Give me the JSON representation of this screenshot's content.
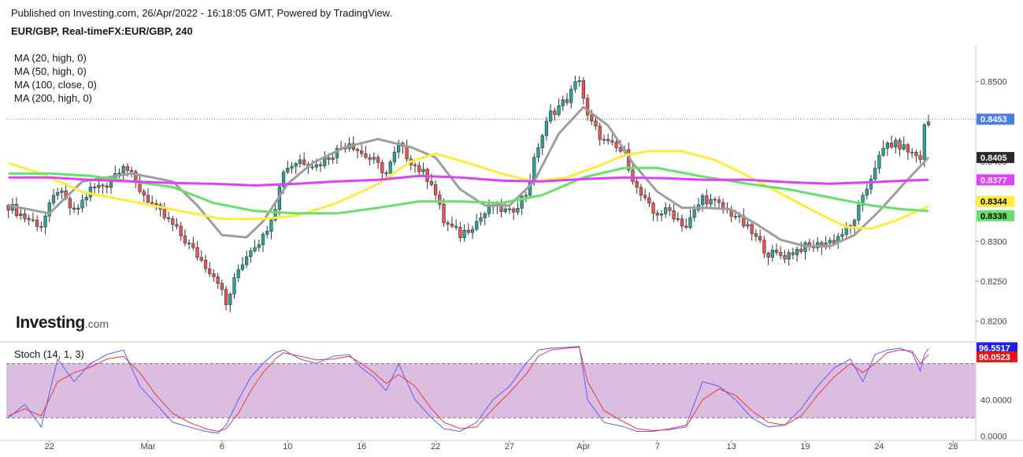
{
  "header": {
    "published": "Published on Investing.com, 26/Apr/2022 - 16:18:05 GMT, Powered by TradingView.",
    "symbol": "EUR/GBP, Real-timeFX:EUR/GBP, 240"
  },
  "brand": {
    "main": "Investing",
    "suffix": ".com"
  },
  "colors": {
    "up": "#26a69a",
    "down": "#ef5350",
    "candle_border": "#333333",
    "ma20": "#9e9e9e",
    "ma50": "#ffeb3b",
    "ma100": "#66e066",
    "ma200": "#e040fb",
    "stoch_k": "#5b5bff",
    "stoch_d": "#ef3340",
    "stoch_band": "#dbbde0",
    "last_price": "#4a7fe0"
  },
  "chart_data": {
    "type": "candlestick",
    "price_axis": {
      "range": [
        0.8175,
        0.8545
      ],
      "ticks": [
        "0.8500",
        "0.8450",
        "0.8400",
        "0.8350",
        "0.8300",
        "0.8250",
        "0.8200"
      ]
    },
    "price_labels": [
      {
        "value": 0.8453,
        "text": "0.8453",
        "series": "last"
      },
      {
        "value": 0.8405,
        "text": "0.8405",
        "series": "ma20"
      },
      {
        "value": 0.8377,
        "text": "0.8377",
        "series": "ma200"
      },
      {
        "value": 0.8344,
        "text": "0.8344",
        "series": "ma50"
      },
      {
        "value": 0.8338,
        "text": "0.8338",
        "series": "ma100"
      }
    ],
    "x_axis": {
      "labels": [
        {
          "text": "22",
          "bar": 10
        },
        {
          "text": "Mar",
          "bar": 34
        },
        {
          "text": "6",
          "bar": 52
        },
        {
          "text": "10",
          "bar": 68
        },
        {
          "text": "16",
          "bar": 86
        },
        {
          "text": "22",
          "bar": 104
        },
        {
          "text": "27",
          "bar": 122
        },
        {
          "text": "Apr",
          "bar": 140
        },
        {
          "text": "7",
          "bar": 158
        },
        {
          "text": "13",
          "bar": 176
        },
        {
          "text": "19",
          "bar": 194
        },
        {
          "text": "24",
          "bar": 212
        },
        {
          "text": "28",
          "bar": 230
        }
      ],
      "bar_count": 236
    },
    "moving_averages": [
      {
        "name": "MA (20, high, 0)",
        "color_key": "ma20",
        "points": [
          [
            0,
            0.8345
          ],
          [
            10,
            0.8335
          ],
          [
            18,
            0.8375
          ],
          [
            30,
            0.8385
          ],
          [
            40,
            0.8375
          ],
          [
            46,
            0.8345
          ],
          [
            52,
            0.8308
          ],
          [
            58,
            0.8305
          ],
          [
            62,
            0.8325
          ],
          [
            68,
            0.8372
          ],
          [
            74,
            0.8398
          ],
          [
            82,
            0.8418
          ],
          [
            90,
            0.8428
          ],
          [
            98,
            0.8418
          ],
          [
            104,
            0.8405
          ],
          [
            110,
            0.8365
          ],
          [
            116,
            0.8345
          ],
          [
            122,
            0.8345
          ],
          [
            128,
            0.8375
          ],
          [
            134,
            0.8435
          ],
          [
            140,
            0.8468
          ],
          [
            146,
            0.8445
          ],
          [
            152,
            0.8398
          ],
          [
            158,
            0.8362
          ],
          [
            164,
            0.8342
          ],
          [
            170,
            0.8342
          ],
          [
            176,
            0.834
          ],
          [
            182,
            0.8322
          ],
          [
            188,
            0.8302
          ],
          [
            194,
            0.8294
          ],
          [
            200,
            0.8294
          ],
          [
            206,
            0.8308
          ],
          [
            212,
            0.8338
          ],
          [
            218,
            0.8372
          ],
          [
            224,
            0.8405
          ]
        ]
      },
      {
        "name": "MA (50, high, 0)",
        "color_key": "ma50",
        "points": [
          [
            0,
            0.8398
          ],
          [
            8,
            0.8385
          ],
          [
            18,
            0.8362
          ],
          [
            30,
            0.835
          ],
          [
            40,
            0.834
          ],
          [
            52,
            0.8328
          ],
          [
            62,
            0.8328
          ],
          [
            70,
            0.8332
          ],
          [
            80,
            0.8348
          ],
          [
            90,
            0.8372
          ],
          [
            98,
            0.84
          ],
          [
            104,
            0.841
          ],
          [
            112,
            0.8398
          ],
          [
            120,
            0.8385
          ],
          [
            128,
            0.8375
          ],
          [
            136,
            0.838
          ],
          [
            144,
            0.8395
          ],
          [
            150,
            0.8408
          ],
          [
            156,
            0.8413
          ],
          [
            164,
            0.8413
          ],
          [
            172,
            0.8402
          ],
          [
            180,
            0.8382
          ],
          [
            188,
            0.836
          ],
          [
            196,
            0.8338
          ],
          [
            204,
            0.8318
          ],
          [
            210,
            0.8316
          ],
          [
            216,
            0.8326
          ],
          [
            224,
            0.8344
          ]
        ]
      },
      {
        "name": "MA (100, close, 0)",
        "color_key": "ma100",
        "points": [
          [
            0,
            0.8385
          ],
          [
            10,
            0.8385
          ],
          [
            20,
            0.8382
          ],
          [
            30,
            0.8375
          ],
          [
            40,
            0.8368
          ],
          [
            50,
            0.8348
          ],
          [
            60,
            0.8338
          ],
          [
            70,
            0.8335
          ],
          [
            80,
            0.8335
          ],
          [
            90,
            0.8342
          ],
          [
            100,
            0.835
          ],
          [
            110,
            0.835
          ],
          [
            120,
            0.8348
          ],
          [
            130,
            0.8358
          ],
          [
            140,
            0.838
          ],
          [
            150,
            0.8392
          ],
          [
            158,
            0.8392
          ],
          [
            168,
            0.8382
          ],
          [
            180,
            0.8372
          ],
          [
            190,
            0.8365
          ],
          [
            200,
            0.8355
          ],
          [
            210,
            0.8345
          ],
          [
            218,
            0.834
          ],
          [
            224,
            0.8338
          ]
        ]
      },
      {
        "name": "MA (200, high, 0)",
        "color_key": "ma200",
        "points": [
          [
            0,
            0.838
          ],
          [
            10,
            0.838
          ],
          [
            20,
            0.8377
          ],
          [
            30,
            0.8375
          ],
          [
            40,
            0.8373
          ],
          [
            50,
            0.8372
          ],
          [
            60,
            0.837
          ],
          [
            70,
            0.8372
          ],
          [
            80,
            0.8375
          ],
          [
            90,
            0.8377
          ],
          [
            100,
            0.8382
          ],
          [
            110,
            0.838
          ],
          [
            120,
            0.8376
          ],
          [
            130,
            0.8375
          ],
          [
            140,
            0.8378
          ],
          [
            150,
            0.838
          ],
          [
            160,
            0.8379
          ],
          [
            170,
            0.8377
          ],
          [
            180,
            0.8377
          ],
          [
            190,
            0.8374
          ],
          [
            200,
            0.8372
          ],
          [
            210,
            0.8374
          ],
          [
            218,
            0.8376
          ],
          [
            224,
            0.8377
          ]
        ]
      }
    ],
    "price_path": [
      [
        0,
        0.8345
      ],
      [
        4,
        0.833
      ],
      [
        8,
        0.832
      ],
      [
        12,
        0.8365
      ],
      [
        16,
        0.8335
      ],
      [
        20,
        0.8365
      ],
      [
        24,
        0.8372
      ],
      [
        28,
        0.8398
      ],
      [
        32,
        0.8365
      ],
      [
        36,
        0.834
      ],
      [
        40,
        0.832
      ],
      [
        44,
        0.8295
      ],
      [
        48,
        0.827
      ],
      [
        51,
        0.8252
      ],
      [
        53,
        0.822
      ],
      [
        56,
        0.8265
      ],
      [
        59,
        0.8292
      ],
      [
        62,
        0.8305
      ],
      [
        65,
        0.8345
      ],
      [
        67,
        0.839
      ],
      [
        71,
        0.8402
      ],
      [
        75,
        0.8395
      ],
      [
        79,
        0.841
      ],
      [
        83,
        0.8425
      ],
      [
        86,
        0.841
      ],
      [
        89,
        0.84
      ],
      [
        92,
        0.8385
      ],
      [
        95,
        0.842
      ],
      [
        99,
        0.8395
      ],
      [
        103,
        0.8375
      ],
      [
        106,
        0.8325
      ],
      [
        110,
        0.8308
      ],
      [
        114,
        0.8325
      ],
      [
        118,
        0.8345
      ],
      [
        122,
        0.8335
      ],
      [
        126,
        0.836
      ],
      [
        129,
        0.842
      ],
      [
        132,
        0.846
      ],
      [
        136,
        0.8478
      ],
      [
        139,
        0.8505
      ],
      [
        141,
        0.8455
      ],
      [
        145,
        0.8425
      ],
      [
        150,
        0.841
      ],
      [
        153,
        0.8365
      ],
      [
        157,
        0.8335
      ],
      [
        161,
        0.8338
      ],
      [
        165,
        0.8318
      ],
      [
        169,
        0.8355
      ],
      [
        173,
        0.8345
      ],
      [
        177,
        0.8332
      ],
      [
        181,
        0.831
      ],
      [
        185,
        0.8285
      ],
      [
        189,
        0.8282
      ],
      [
        193,
        0.8292
      ],
      [
        197,
        0.8295
      ],
      [
        201,
        0.8302
      ],
      [
        205,
        0.8318
      ],
      [
        208,
        0.8352
      ],
      [
        211,
        0.8395
      ],
      [
        214,
        0.8422
      ],
      [
        217,
        0.842
      ],
      [
        220,
        0.841
      ],
      [
        222,
        0.8405
      ],
      [
        223,
        0.8443
      ],
      [
        224,
        0.845
      ]
    ],
    "stochastic": {
      "name": "Stoch (14, 1, 3)",
      "range": [
        -5,
        103
      ],
      "ticks": [
        "40.0000",
        "0.0000"
      ],
      "upper_band": 80,
      "lower_band": 20,
      "labels": [
        {
          "value": 96.5517,
          "text": "96.5517",
          "series": "k"
        },
        {
          "value": 90.0523,
          "text": "90.0523",
          "series": "d"
        }
      ],
      "k_path": [
        [
          0,
          20
        ],
        [
          4,
          35
        ],
        [
          8,
          10
        ],
        [
          12,
          85
        ],
        [
          16,
          60
        ],
        [
          20,
          80
        ],
        [
          24,
          90
        ],
        [
          28,
          95
        ],
        [
          32,
          55
        ],
        [
          36,
          35
        ],
        [
          40,
          15
        ],
        [
          44,
          10
        ],
        [
          48,
          5
        ],
        [
          51,
          3
        ],
        [
          53,
          12
        ],
        [
          56,
          40
        ],
        [
          59,
          65
        ],
        [
          62,
          80
        ],
        [
          65,
          92
        ],
        [
          67,
          95
        ],
        [
          71,
          85
        ],
        [
          75,
          80
        ],
        [
          79,
          88
        ],
        [
          83,
          90
        ],
        [
          86,
          75
        ],
        [
          89,
          65
        ],
        [
          92,
          50
        ],
        [
          95,
          80
        ],
        [
          99,
          40
        ],
        [
          103,
          20
        ],
        [
          106,
          8
        ],
        [
          110,
          5
        ],
        [
          114,
          15
        ],
        [
          118,
          40
        ],
        [
          122,
          55
        ],
        [
          126,
          80
        ],
        [
          129,
          95
        ],
        [
          132,
          97
        ],
        [
          136,
          98
        ],
        [
          139,
          99
        ],
        [
          141,
          40
        ],
        [
          145,
          15
        ],
        [
          150,
          10
        ],
        [
          153,
          5
        ],
        [
          157,
          5
        ],
        [
          161,
          8
        ],
        [
          165,
          12
        ],
        [
          169,
          60
        ],
        [
          173,
          55
        ],
        [
          177,
          40
        ],
        [
          181,
          20
        ],
        [
          185,
          10
        ],
        [
          189,
          12
        ],
        [
          193,
          30
        ],
        [
          197,
          55
        ],
        [
          201,
          75
        ],
        [
          205,
          85
        ],
        [
          208,
          60
        ],
        [
          211,
          90
        ],
        [
          214,
          95
        ],
        [
          217,
          97
        ],
        [
          220,
          92
        ],
        [
          222,
          72
        ],
        [
          223,
          90
        ],
        [
          224,
          96.5517
        ]
      ],
      "d_path": [
        [
          0,
          22
        ],
        [
          4,
          30
        ],
        [
          8,
          22
        ],
        [
          12,
          60
        ],
        [
          16,
          70
        ],
        [
          20,
          76
        ],
        [
          24,
          85
        ],
        [
          28,
          88
        ],
        [
          32,
          70
        ],
        [
          36,
          45
        ],
        [
          40,
          25
        ],
        [
          44,
          15
        ],
        [
          48,
          8
        ],
        [
          51,
          5
        ],
        [
          53,
          8
        ],
        [
          56,
          25
        ],
        [
          59,
          50
        ],
        [
          62,
          70
        ],
        [
          65,
          85
        ],
        [
          67,
          92
        ],
        [
          71,
          88
        ],
        [
          75,
          84
        ],
        [
          79,
          85
        ],
        [
          83,
          88
        ],
        [
          86,
          80
        ],
        [
          89,
          70
        ],
        [
          92,
          58
        ],
        [
          95,
          68
        ],
        [
          99,
          55
        ],
        [
          103,
          30
        ],
        [
          106,
          15
        ],
        [
          110,
          8
        ],
        [
          114,
          10
        ],
        [
          118,
          30
        ],
        [
          122,
          48
        ],
        [
          126,
          68
        ],
        [
          129,
          88
        ],
        [
          132,
          95
        ],
        [
          136,
          97
        ],
        [
          139,
          98
        ],
        [
          141,
          60
        ],
        [
          145,
          28
        ],
        [
          150,
          15
        ],
        [
          153,
          8
        ],
        [
          157,
          6
        ],
        [
          161,
          7
        ],
        [
          165,
          10
        ],
        [
          169,
          40
        ],
        [
          173,
          52
        ],
        [
          177,
          45
        ],
        [
          181,
          28
        ],
        [
          185,
          15
        ],
        [
          189,
          12
        ],
        [
          193,
          22
        ],
        [
          197,
          45
        ],
        [
          201,
          65
        ],
        [
          205,
          80
        ],
        [
          208,
          70
        ],
        [
          211,
          80
        ],
        [
          214,
          92
        ],
        [
          217,
          95
        ],
        [
          220,
          94
        ],
        [
          222,
          80
        ],
        [
          223,
          85
        ],
        [
          224,
          90.0523
        ]
      ]
    }
  },
  "legend": {
    "ma20": "MA (20, high, 0)",
    "ma50": "MA (50, high, 0)",
    "ma100": "MA (100, close, 0)",
    "ma200": "MA (200, high, 0)"
  }
}
